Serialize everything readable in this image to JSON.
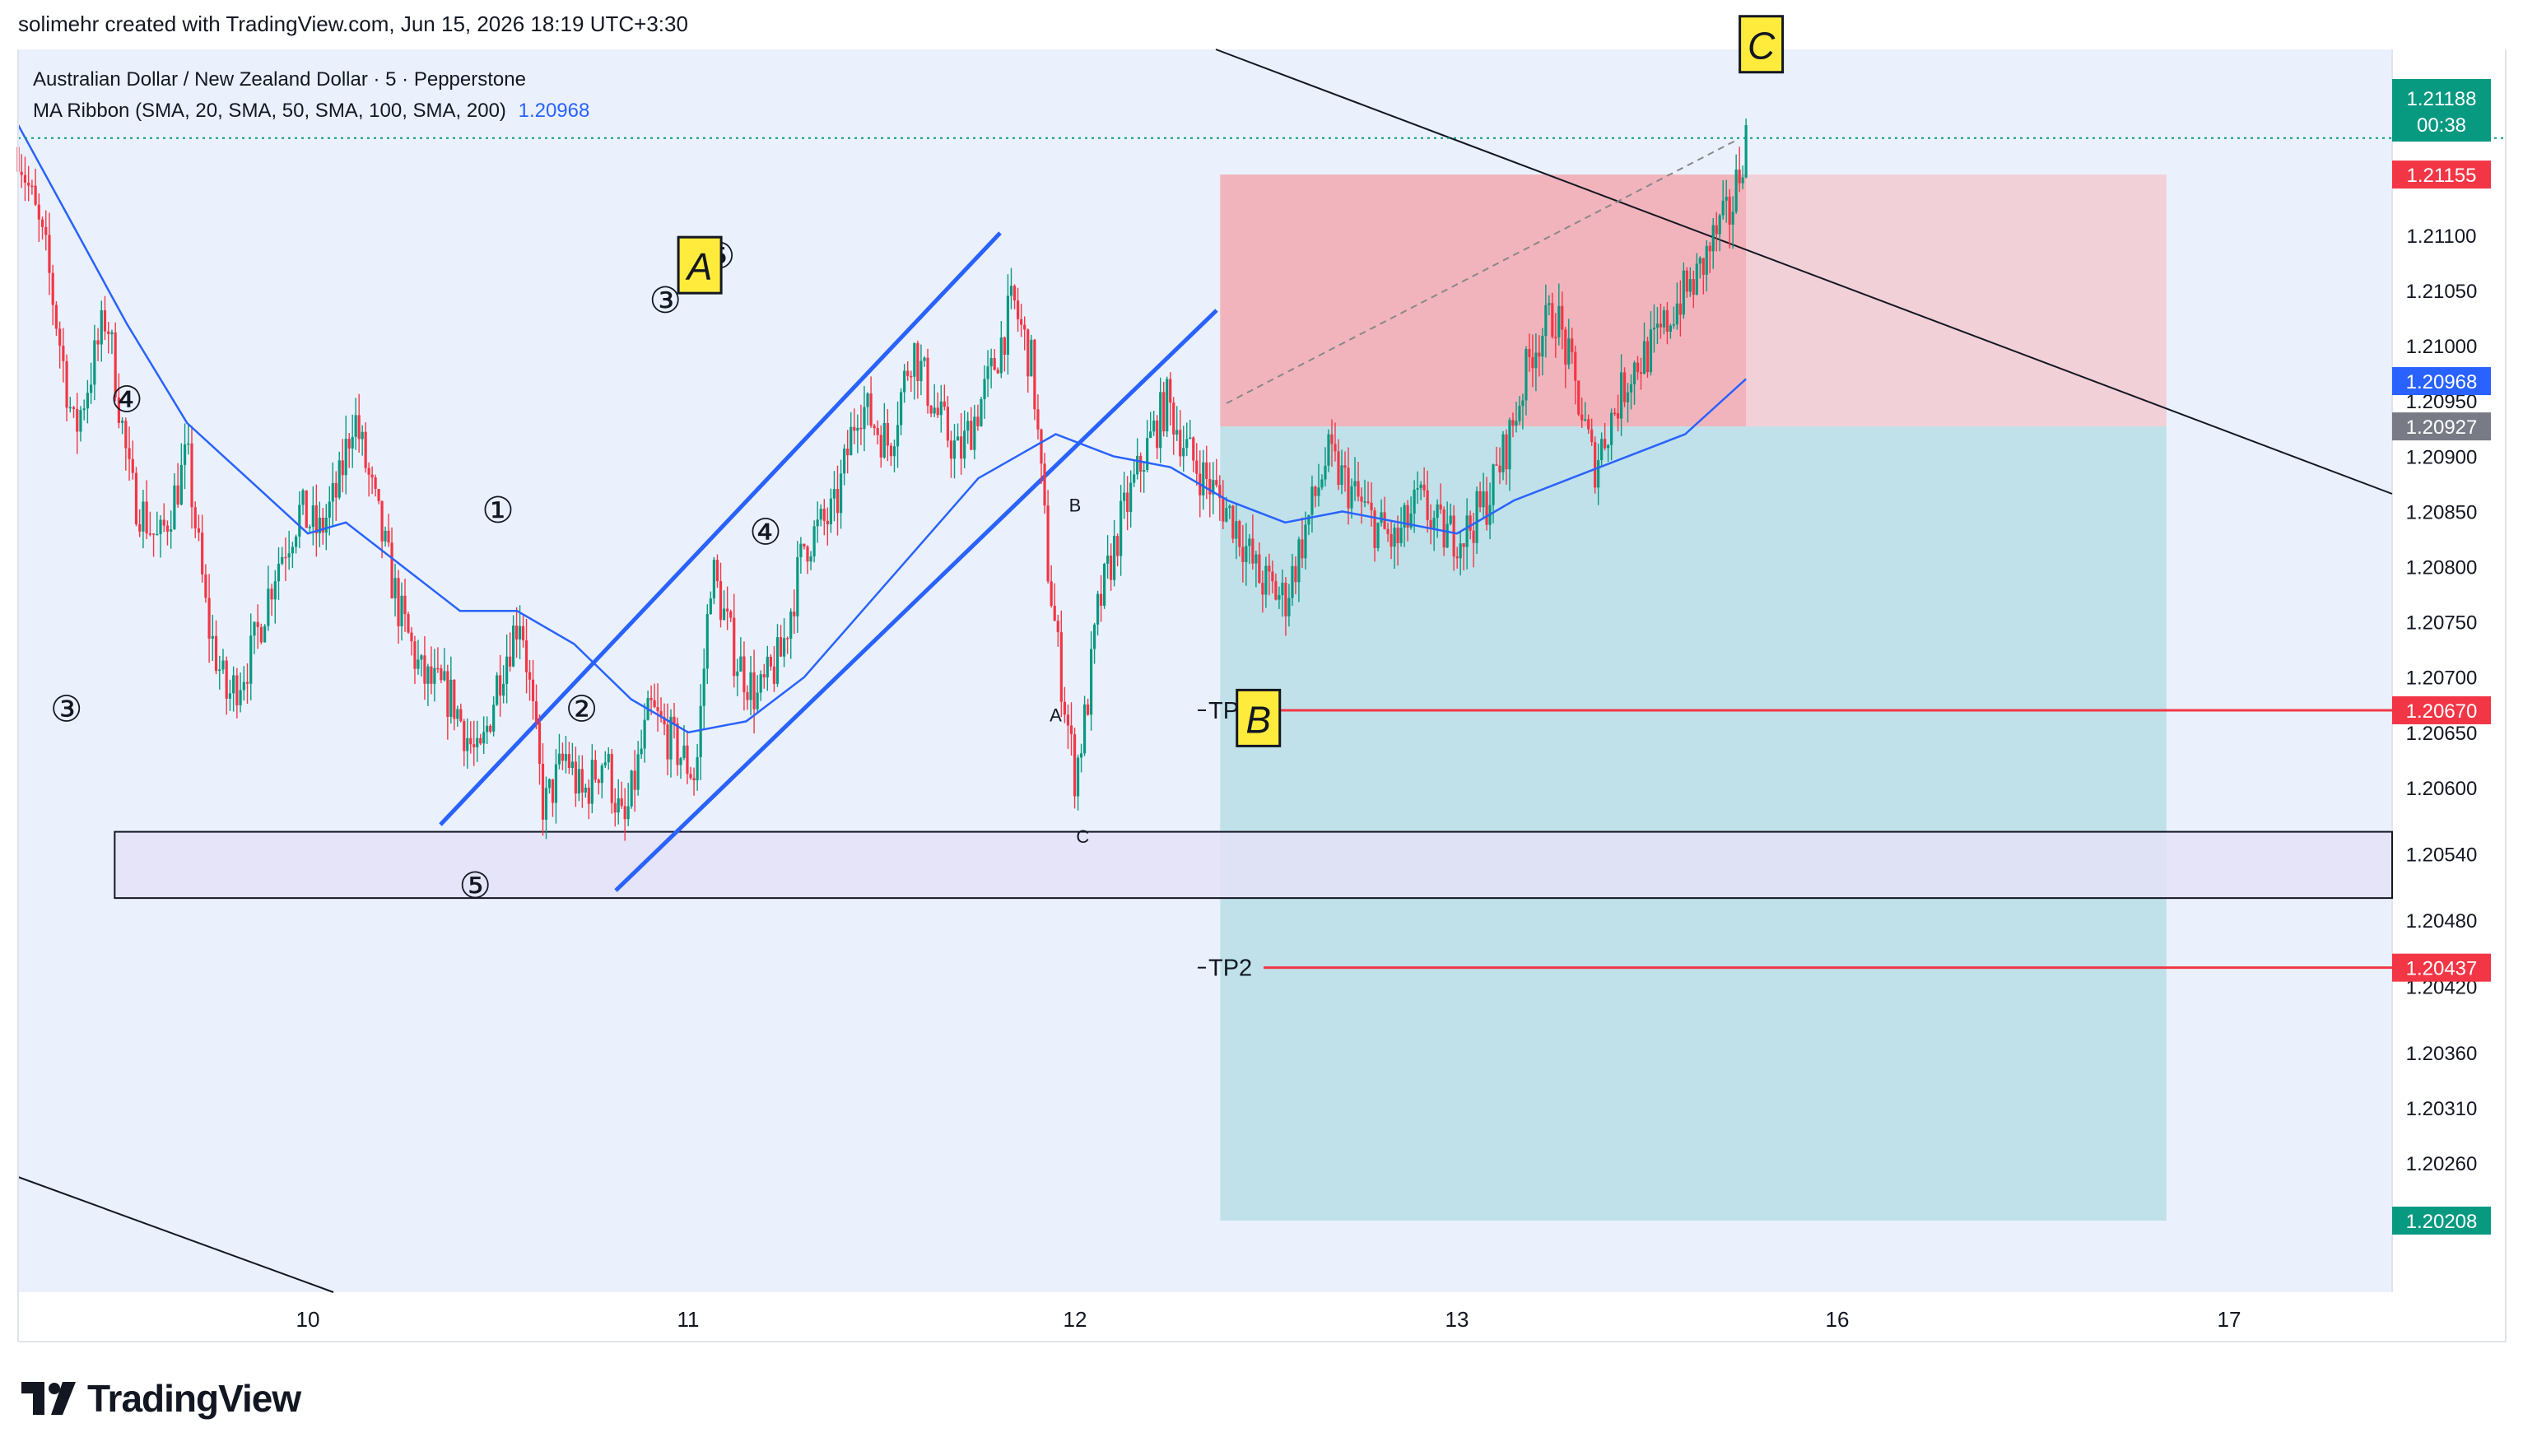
{
  "header": {
    "credit": "solimehr created with TradingView.com, Jun 15, 2026 18:19 UTC+3:30"
  },
  "legend": {
    "symbol_line": "Australian Dollar / New Zealand Dollar · 5 · Pepperstone",
    "indicator_line": "MA Ribbon (SMA, 20, SMA, 50, SMA, 100, SMA, 200)",
    "indicator_value": "1.20968"
  },
  "footer": {
    "brand": "TradingView"
  },
  "colors": {
    "up": "#089981",
    "down": "#f23645",
    "ma": "#2962ff",
    "wave_line": "#2962ff",
    "panel_bg": "#eaf1fd",
    "stop_zone": "#f7b4b8",
    "target_zone": "#b8dee5",
    "support_box": "#e4e2f7",
    "tp_line": "#f23645",
    "note_bg": "#ffeb3b"
  },
  "chart_data": {
    "type": "candlestick",
    "title": "Australian Dollar / New Zealand Dollar · 5 · Pepperstone",
    "interval": "5",
    "ylim": [
      1.2018,
      1.2132
    ],
    "y_ticks": [
      "1.21200",
      "1.21100",
      "1.21050",
      "1.21000",
      "1.20950",
      "1.20900",
      "1.20850",
      "1.20800",
      "1.20750",
      "1.20700",
      "1.20650",
      "1.20600",
      "1.20540",
      "1.20480",
      "1.20420",
      "1.20360",
      "1.20310",
      "1.20260"
    ],
    "x_ticks": [
      {
        "label": "10",
        "day": 1
      },
      {
        "label": "11",
        "day": 2
      },
      {
        "label": "12",
        "day": 3
      },
      {
        "label": "13",
        "day": 4
      },
      {
        "label": "16",
        "day": 5
      },
      {
        "label": "17",
        "day": 6
      }
    ],
    "day_span": [
      0.28,
      6.5
    ],
    "price_path": [
      [
        0.28,
        1.2118
      ],
      [
        0.35,
        1.2108
      ],
      [
        0.42,
        1.2092
      ],
      [
        0.5,
        1.2103
      ],
      [
        0.56,
        1.2087
      ],
      [
        0.63,
        1.2082
      ],
      [
        0.7,
        1.209
      ],
      [
        0.75,
        1.2075
      ],
      [
        0.8,
        1.2068
      ],
      [
        0.86,
        1.2072
      ],
      [
        0.92,
        1.208
      ],
      [
        0.98,
        1.2085
      ],
      [
        1.03,
        1.2083
      ],
      [
        1.08,
        1.2087
      ],
      [
        1.12,
        1.2094
      ],
      [
        1.18,
        1.2085
      ],
      [
        1.24,
        1.2076
      ],
      [
        1.3,
        1.207
      ],
      [
        1.38,
        1.2068
      ],
      [
        1.45,
        1.2062
      ],
      [
        1.5,
        1.207
      ],
      [
        1.56,
        1.2076
      ],
      [
        1.62,
        1.2058
      ],
      [
        1.68,
        1.2063
      ],
      [
        1.72,
        1.2059
      ],
      [
        1.78,
        1.2063
      ],
      [
        1.83,
        1.2056
      ],
      [
        1.9,
        1.2067
      ],
      [
        1.96,
        1.2064
      ],
      [
        2.02,
        1.2061
      ],
      [
        2.06,
        1.208
      ],
      [
        2.12,
        1.2072
      ],
      [
        2.18,
        1.2068
      ],
      [
        2.24,
        1.2072
      ],
      [
        2.3,
        1.2082
      ],
      [
        2.38,
        1.2085
      ],
      [
        2.44,
        1.2095
      ],
      [
        2.52,
        1.2091
      ],
      [
        2.58,
        1.21
      ],
      [
        2.64,
        1.2094
      ],
      [
        2.7,
        1.209
      ],
      [
        2.78,
        1.2097
      ],
      [
        2.84,
        1.2104
      ],
      [
        2.89,
        1.2098
      ],
      [
        2.93,
        1.208
      ],
      [
        2.96,
        1.2071
      ],
      [
        3.0,
        1.2061
      ],
      [
        3.03,
        1.2067
      ],
      [
        3.06,
        1.2076
      ],
      [
        3.12,
        1.2084
      ],
      [
        3.18,
        1.209
      ],
      [
        3.24,
        1.2095
      ],
      [
        3.3,
        1.209
      ],
      [
        3.36,
        1.2087
      ],
      [
        3.42,
        1.2084
      ],
      [
        3.48,
        1.2079
      ],
      [
        3.55,
        1.2077
      ],
      [
        3.6,
        1.2083
      ],
      [
        3.66,
        1.209
      ],
      [
        3.72,
        1.2087
      ],
      [
        3.78,
        1.2084
      ],
      [
        3.84,
        1.2082
      ],
      [
        3.9,
        1.2086
      ],
      [
        3.96,
        1.2083
      ],
      [
        4.02,
        1.2083
      ],
      [
        4.08,
        1.2086
      ],
      [
        4.14,
        1.2092
      ],
      [
        4.2,
        1.21
      ],
      [
        4.26,
        1.2103
      ],
      [
        4.32,
        1.2095
      ],
      [
        4.36,
        1.2089
      ],
      [
        4.4,
        1.2093
      ],
      [
        4.46,
        1.2098
      ],
      [
        4.52,
        1.21
      ],
      [
        4.58,
        1.2104
      ],
      [
        4.63,
        1.2106
      ],
      [
        4.68,
        1.211
      ],
      [
        4.72,
        1.2112
      ],
      [
        4.76,
        1.2119
      ]
    ],
    "ma_path": [
      [
        0.28,
        1.212
      ],
      [
        0.4,
        1.2112
      ],
      [
        0.55,
        1.2102
      ],
      [
        0.7,
        1.2093
      ],
      [
        0.85,
        1.2088
      ],
      [
        1.0,
        1.2083
      ],
      [
        1.1,
        1.2084
      ],
      [
        1.25,
        1.208
      ],
      [
        1.4,
        1.2076
      ],
      [
        1.55,
        1.2076
      ],
      [
        1.7,
        1.2073
      ],
      [
        1.85,
        1.2068
      ],
      [
        2.0,
        1.2065
      ],
      [
        2.15,
        1.2066
      ],
      [
        2.3,
        1.207
      ],
      [
        2.45,
        1.2076
      ],
      [
        2.6,
        1.2082
      ],
      [
        2.75,
        1.2088
      ],
      [
        2.85,
        1.209
      ],
      [
        2.95,
        1.2092
      ],
      [
        3.1,
        1.209
      ],
      [
        3.25,
        1.2089
      ],
      [
        3.4,
        1.2086
      ],
      [
        3.55,
        1.2084
      ],
      [
        3.7,
        1.2085
      ],
      [
        3.85,
        1.2084
      ],
      [
        4.0,
        1.2083
      ],
      [
        4.15,
        1.2086
      ],
      [
        4.3,
        1.2088
      ],
      [
        4.45,
        1.209
      ],
      [
        4.6,
        1.2092
      ],
      [
        4.76,
        1.2097
      ]
    ],
    "price_label": {
      "value": "1.21188",
      "countdown": "00:38"
    },
    "axis_markers": [
      {
        "value": "1.21155",
        "price": 1.21155,
        "color": "#f23645"
      },
      {
        "value": "1.20968",
        "price": 1.20968,
        "color": "#2962ff"
      },
      {
        "value": "1.20927",
        "price": 1.20927,
        "color": "#787b86"
      },
      {
        "value": "1.20670",
        "price": 1.2067,
        "color": "#f23645"
      },
      {
        "value": "1.20437",
        "price": 1.20437,
        "color": "#f23645"
      },
      {
        "value": "1.20208",
        "price": 1.20208,
        "color": "#089981"
      }
    ],
    "position": {
      "type": "short",
      "entry": 1.20927,
      "stop": 1.21155,
      "target": 1.20208,
      "start_day": 3.38,
      "end_day": 5.84
    },
    "support_zone": {
      "top": 1.2056,
      "bottom": 1.205,
      "start_day": 0.52
    },
    "take_profits": [
      {
        "label": "TP1",
        "price": 1.2067
      },
      {
        "label": "TP2",
        "price": 1.20437
      }
    ],
    "boxed_notes": [
      {
        "text": "A",
        "day": 2.03,
        "price": 1.2107
      },
      {
        "text": "B",
        "day": 3.48,
        "price": 1.2066
      },
      {
        "text": "C",
        "day": 4.8,
        "price": 1.2127
      }
    ],
    "wave_labels": [
      {
        "text": "④",
        "day": 0.55,
        "price": 1.2094
      },
      {
        "text": "③",
        "day": 0.4,
        "price": 1.2066
      },
      {
        "text": "⑤",
        "day": 1.44,
        "price": 1.205
      },
      {
        "text": "①",
        "day": 1.5,
        "price": 1.2084
      },
      {
        "text": "②",
        "day": 1.72,
        "price": 1.2066
      },
      {
        "text": "③",
        "day": 1.94,
        "price": 1.2103
      },
      {
        "text": "④",
        "day": 2.2,
        "price": 1.2082
      },
      {
        "text": "⑤",
        "day": 2.08,
        "price": 1.2107
      },
      {
        "text": "A",
        "day": 2.95,
        "price": 1.2066
      },
      {
        "text": "B",
        "day": 3.0,
        "price": 1.2085
      },
      {
        "text": "C",
        "day": 3.02,
        "price": 1.2055
      }
    ]
  }
}
